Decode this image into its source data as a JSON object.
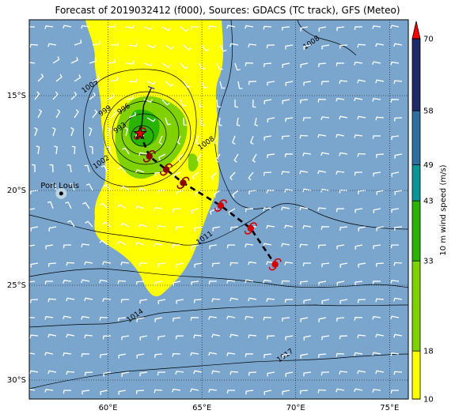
{
  "title": "Forecast of 2019032412 (f000), Sources: GDACS (TC track), GFS (Meteo)",
  "map": {
    "lon_range": [
      55.8,
      76.0
    ],
    "lat_range": [
      -31.0,
      -11.0
    ],
    "lon_ticks": [
      {
        "value": 60,
        "label": "60°E"
      },
      {
        "value": 65,
        "label": "65°E"
      },
      {
        "value": 70,
        "label": "70°E"
      },
      {
        "value": 75,
        "label": "75°E"
      }
    ],
    "lat_ticks": [
      {
        "value": -15,
        "label": "15°S"
      },
      {
        "value": -20,
        "label": "20°S"
      },
      {
        "value": -25,
        "label": "25°S"
      },
      {
        "value": -30,
        "label": "30°S"
      }
    ],
    "city": {
      "name": "Port Louis",
      "lon": 57.5,
      "lat": -20.16
    },
    "colors": {
      "background": "#7aa6ce",
      "wind_10_18": "#ffff00",
      "wind_18_33": "#7fd200",
      "wind_33_43": "#28b400",
      "wind_43_49": "#0a9696",
      "wind_49_58": "#2e6f9f",
      "wind_58_70": "#1f2b68",
      "track": "#000000",
      "storm_symbol": "#b00000"
    }
  },
  "isobars": [
    {
      "label": "993",
      "lon": 60.7,
      "lat": -16.8
    },
    {
      "label": "996",
      "lon": 60.9,
      "lat": -15.8
    },
    {
      "label": "999",
      "lon": 59.9,
      "lat": -15.9
    },
    {
      "label": "1002",
      "lon": 59.7,
      "lat": -18.6
    },
    {
      "label": "1005",
      "lon": 59.1,
      "lat": -14.6
    },
    {
      "label": "1008",
      "lon": 65.3,
      "lat": -17.6
    },
    {
      "label": "1008",
      "lon": 70.9,
      "lat": -12.3
    },
    {
      "label": "1011",
      "lon": 65.2,
      "lat": -22.6
    },
    {
      "label": "1014",
      "lon": 61.5,
      "lat": -26.7
    },
    {
      "label": "1017",
      "lon": 69.5,
      "lat": -28.8
    }
  ],
  "track": {
    "observed": [
      [
        62.3,
        -14.6
      ],
      [
        61.9,
        -15.5
      ],
      [
        61.8,
        -16.5
      ],
      [
        61.7,
        -17.0
      ]
    ],
    "forecast": [
      [
        61.7,
        -17.0
      ],
      [
        62.2,
        -18.2
      ],
      [
        63.1,
        -18.9
      ],
      [
        64.0,
        -19.6
      ],
      [
        66.0,
        -20.8
      ],
      [
        67.6,
        -22.0
      ],
      [
        68.9,
        -23.9
      ]
    ],
    "positions": [
      [
        61.7,
        -17.0
      ],
      [
        62.2,
        -18.2
      ],
      [
        63.1,
        -18.9
      ],
      [
        64.0,
        -19.6
      ],
      [
        66.0,
        -20.8
      ],
      [
        67.6,
        -22.0
      ],
      [
        68.9,
        -23.9
      ]
    ]
  },
  "colorbar": {
    "label": "10 m wind speed (m/s)",
    "levels": [
      "10",
      "18",
      "33",
      "43",
      "49",
      "58",
      "70"
    ],
    "bounds": [
      10,
      18,
      33,
      43,
      49,
      58,
      70
    ]
  }
}
